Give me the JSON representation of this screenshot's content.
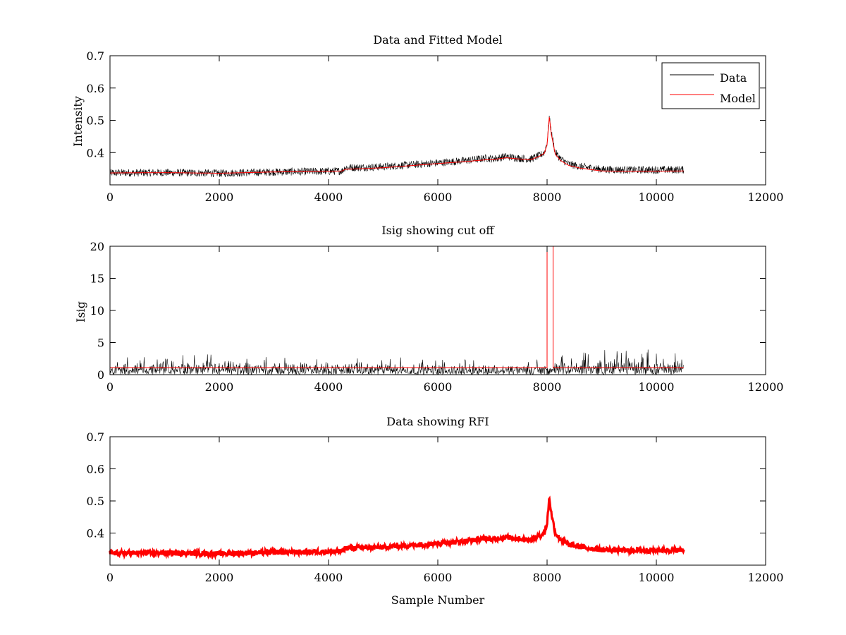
{
  "colors": {
    "data": "#000000",
    "model": "#ff0000",
    "rfi": "#ff0000",
    "axes": "#000000",
    "background": "#ffffff"
  },
  "chart_data": [
    {
      "type": "line",
      "title": "Data and Fitted Model",
      "xlabel": "",
      "ylabel": "Intensity",
      "xlim": [
        0,
        12000
      ],
      "ylim": [
        0.3,
        0.7
      ],
      "xticks": [
        0,
        2000,
        4000,
        6000,
        8000,
        10000,
        12000
      ],
      "yticks": [
        0.4,
        0.5,
        0.6,
        0.7
      ],
      "xtick_labels": [
        "0",
        "2000",
        "4000",
        "6000",
        "8000",
        "10000",
        "12000"
      ],
      "ytick_labels": [
        "0.4",
        "0.5",
        "0.6",
        "0.7"
      ],
      "legend": {
        "placement": "top-right",
        "entries": [
          "Data",
          "Model"
        ]
      },
      "series": [
        {
          "name": "Data",
          "color": "#000000",
          "noise": 0.012,
          "x": [
            0,
            1000,
            2000,
            3000,
            4000,
            4250,
            4300,
            5000,
            6000,
            6500,
            6900,
            7000,
            7250,
            7500,
            7700,
            7850,
            7950,
            8000,
            8040,
            8080,
            8150,
            8250,
            8400,
            8600,
            9000,
            9500,
            10500
          ],
          "y": [
            0.337,
            0.338,
            0.336,
            0.34,
            0.342,
            0.343,
            0.353,
            0.356,
            0.368,
            0.375,
            0.383,
            0.38,
            0.388,
            0.382,
            0.38,
            0.39,
            0.4,
            0.43,
            0.51,
            0.46,
            0.4,
            0.38,
            0.364,
            0.357,
            0.348,
            0.346,
            0.347
          ]
        },
        {
          "name": "Model",
          "color": "#ff0000",
          "noise": 0,
          "x": [
            0,
            1000,
            2000,
            3000,
            4000,
            4250,
            4300,
            5000,
            6000,
            6500,
            6900,
            7000,
            7250,
            7500,
            7700,
            7850,
            7950,
            8000,
            8040,
            8080,
            8150,
            8250,
            8400,
            8600,
            9000,
            9500,
            10500
          ],
          "y": [
            0.337,
            0.338,
            0.336,
            0.34,
            0.342,
            0.343,
            0.348,
            0.353,
            0.366,
            0.372,
            0.378,
            0.378,
            0.384,
            0.38,
            0.378,
            0.388,
            0.398,
            0.425,
            0.51,
            0.455,
            0.395,
            0.375,
            0.36,
            0.352,
            0.343,
            0.342,
            0.343
          ]
        }
      ]
    },
    {
      "type": "line",
      "title": "Isig showing cut off",
      "xlabel": "",
      "ylabel": "Isig",
      "xlim": [
        0,
        12000
      ],
      "ylim": [
        0,
        20
      ],
      "xticks": [
        0,
        2000,
        4000,
        6000,
        8000,
        10000,
        12000
      ],
      "yticks": [
        0,
        5,
        10,
        15,
        20
      ],
      "xtick_labels": [
        "0",
        "2000",
        "4000",
        "6000",
        "8000",
        "10000",
        "12000"
      ],
      "ytick_labels": [
        "0",
        "5",
        "10",
        "15",
        "20"
      ],
      "series": [
        {
          "color": "#000000",
          "kind": "noise",
          "x_range": [
            0,
            10500
          ],
          "envelope_x": [
            0,
            1000,
            2000,
            3000,
            4000,
            5000,
            6000,
            7000,
            8000,
            8500,
            9000,
            9500,
            10500
          ],
          "envelope_y": [
            1.8,
            2.4,
            2.3,
            2.2,
            2.2,
            2.0,
            1.8,
            1.9,
            2.0,
            2.3,
            2.8,
            3.0,
            2.8
          ]
        },
        {
          "color": "#ff0000",
          "kind": "cutoff",
          "x": [
            0,
            7990,
            8000,
            8000,
            8110,
            8110,
            8120,
            10500
          ],
          "y": [
            1.1,
            1.1,
            1.1,
            20,
            20,
            1.1,
            1.1,
            1.1
          ]
        }
      ]
    },
    {
      "type": "scatter",
      "title": "Data showing RFI",
      "xlabel": "Sample Number",
      "ylabel": "",
      "xlim": [
        0,
        12000
      ],
      "ylim": [
        0.3,
        0.7
      ],
      "xticks": [
        0,
        2000,
        4000,
        6000,
        8000,
        10000,
        12000
      ],
      "yticks": [
        0.4,
        0.5,
        0.6,
        0.7
      ],
      "xtick_labels": [
        "0",
        "2000",
        "4000",
        "6000",
        "8000",
        "10000",
        "12000"
      ],
      "ytick_labels": [
        "0.4",
        "0.5",
        "0.6",
        "0.7"
      ],
      "series": [
        {
          "color": "#ff0000",
          "noise": 0.008,
          "x": [
            0,
            1000,
            2000,
            3000,
            4000,
            4250,
            4300,
            5000,
            6000,
            6500,
            6900,
            7000,
            7250,
            7500,
            7700,
            7850,
            7950,
            8000,
            8040,
            8080,
            8150,
            8250,
            8400,
            8600,
            9000,
            9500,
            10500
          ],
          "y": [
            0.337,
            0.338,
            0.336,
            0.34,
            0.342,
            0.343,
            0.353,
            0.356,
            0.368,
            0.375,
            0.383,
            0.38,
            0.388,
            0.382,
            0.38,
            0.39,
            0.4,
            0.43,
            0.51,
            0.46,
            0.4,
            0.38,
            0.364,
            0.357,
            0.348,
            0.346,
            0.347
          ]
        }
      ]
    }
  ]
}
